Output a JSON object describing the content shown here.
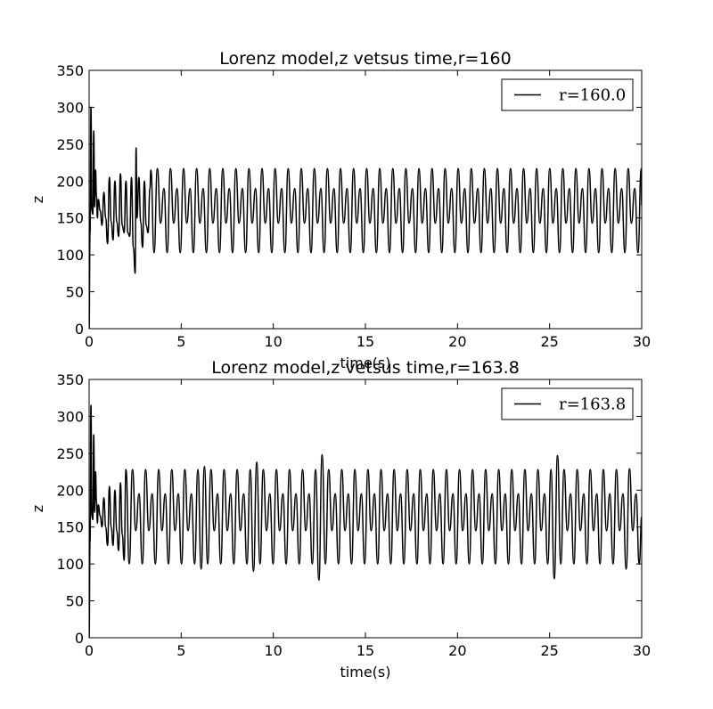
{
  "chart_data": [
    {
      "type": "line",
      "title": "Lorenz model,z vetsus time,r=160",
      "xlabel": "time(s)",
      "ylabel": "z",
      "xlim": [
        0,
        30
      ],
      "ylim": [
        0,
        350
      ],
      "xticks": [
        "0",
        "5",
        "10",
        "15",
        "20",
        "25",
        "30"
      ],
      "yticks": [
        "0",
        "50",
        "100",
        "150",
        "200",
        "250",
        "300",
        "350"
      ],
      "grid": false,
      "legend_position": "top-right",
      "series": [
        {
          "name": "r=160.0",
          "color": "#000000",
          "x": [
            0,
            0.05,
            0.1,
            0.15,
            0.2,
            0.25,
            0.3,
            0.35,
            0.4,
            0.45,
            0.5,
            0.6,
            0.7,
            0.8,
            0.9,
            1.0,
            1.1,
            1.2,
            1.3,
            1.4,
            1.5,
            1.6,
            1.7,
            1.8,
            1.9,
            2.0,
            2.1,
            2.2,
            2.3,
            2.4,
            2.5,
            2.55,
            2.6,
            2.7,
            2.8,
            2.9,
            3.0,
            3.1,
            3.2,
            3.3,
            3.35
          ],
          "y": [
            0,
            130,
            300,
            160,
            155,
            268,
            165,
            215,
            180,
            150,
            175,
            160,
            140,
            185,
            150,
            115,
            205,
            145,
            120,
            200,
            145,
            125,
            210,
            140,
            130,
            200,
            130,
            125,
            205,
            110,
            75,
            245,
            150,
            205,
            145,
            110,
            200,
            140,
            130,
            190,
            215
          ]
        }
      ],
      "periodic_segment": {
        "start": 3.3,
        "end": 30,
        "period": 0.355,
        "peaks": [
          217,
          190
        ],
        "troughs": [
          103,
          143
        ]
      }
    },
    {
      "type": "line",
      "title": "Lorenz model,z vetsus time,r=163.8",
      "xlabel": "time(s)",
      "ylabel": "z",
      "xlim": [
        0,
        30
      ],
      "ylim": [
        0,
        350
      ],
      "xticks": [
        "0",
        "5",
        "10",
        "15",
        "20",
        "25",
        "30"
      ],
      "yticks": [
        "0",
        "50",
        "100",
        "150",
        "200",
        "250",
        "300",
        "350"
      ],
      "grid": false,
      "legend_position": "top-right",
      "series": [
        {
          "name": "r=163.8",
          "color": "#000000",
          "x": [
            0,
            0.05,
            0.1,
            0.15,
            0.2,
            0.25,
            0.3,
            0.35,
            0.4,
            0.45,
            0.5,
            0.6,
            0.7,
            0.8,
            0.9,
            1.0,
            1.1,
            1.2,
            1.3,
            1.4,
            1.5,
            1.6,
            1.7,
            1.8,
            1.9,
            2.0
          ],
          "y": [
            0,
            130,
            315,
            165,
            160,
            275,
            170,
            225,
            185,
            155,
            180,
            165,
            150,
            190,
            150,
            125,
            205,
            150,
            125,
            200,
            145,
            118,
            210,
            140,
            105,
            228
          ]
        }
      ],
      "periodic_segment": {
        "start": 2.0,
        "end": 30,
        "period": 0.355,
        "peaks": [
          228,
          195
        ],
        "troughs": [
          100,
          145
        ],
        "bursts": [
          {
            "time": 6.1,
            "trough": 93,
            "peak": 232
          },
          {
            "time": 8.9,
            "trough": 90,
            "peak": 238
          },
          {
            "time": 12.4,
            "trough": 78,
            "peak": 248
          },
          {
            "time": 25.2,
            "trough": 80,
            "peak": 247
          },
          {
            "time": 28.9,
            "trough": 93,
            "peak": 229
          }
        ]
      }
    }
  ]
}
